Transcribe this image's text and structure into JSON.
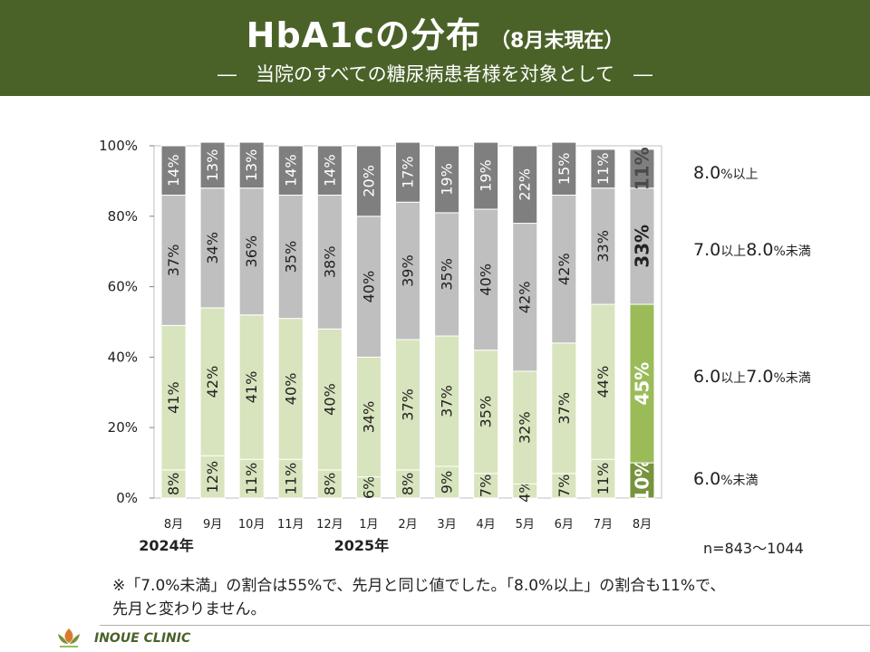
{
  "header": {
    "title": "HbA1cの分布",
    "title_suffix": "（8月末現在）",
    "subtitle": "―　当院のすべての糖尿病患者様を対象として　―"
  },
  "legend": [
    {
      "value": "8.0",
      "unit": "%以上"
    },
    {
      "value": "7.0",
      "unit_mid": "以上",
      "value2": "8.0",
      "unit": "%未満"
    },
    {
      "value": "6.0",
      "unit_mid": "以上",
      "value2": "7.0",
      "unit": "%未満"
    },
    {
      "value": "6.0",
      "unit": "%未満"
    }
  ],
  "n_label": "n=843～1044",
  "note": "※「7.0%未満」の割合は55%で、先月と同じ値でした。「8.0%以上」の割合も11%で、先月と変わりません。",
  "footer": {
    "clinic_name": "INOUE CLINIC"
  },
  "colors": {
    "header_bg": "#4a6228",
    "lt6": "#d7e4bd",
    "6to7": "#d7e4bd",
    "7to8": "#bfbfbf",
    "ge8": "#7f7f7f",
    "lt6_current": "#77933c",
    "6to7_current": "#9bbb59"
  },
  "chart_data": {
    "type": "bar",
    "stacked": true,
    "categories": [
      "8月",
      "9月",
      "10月",
      "11月",
      "12月",
      "1月",
      "2月",
      "3月",
      "4月",
      "5月",
      "6月",
      "7月",
      "8月"
    ],
    "year_labels": [
      {
        "label": "2024年",
        "at_category": 0
      },
      {
        "label": "2025年",
        "at_category": 5
      }
    ],
    "ylim": [
      0,
      100
    ],
    "yticks": [
      "0%",
      "20%",
      "40%",
      "60%",
      "80%",
      "100%"
    ],
    "series": [
      {
        "name": "6.0%未満",
        "values": [
          8,
          12,
          11,
          11,
          8,
          6,
          8,
          9,
          7,
          4,
          7,
          11,
          10
        ]
      },
      {
        "name": "6.0以上7.0%未満",
        "values": [
          41,
          42,
          41,
          40,
          40,
          34,
          37,
          37,
          35,
          32,
          37,
          44,
          45
        ]
      },
      {
        "name": "7.0以上8.0%未満",
        "values": [
          37,
          34,
          36,
          35,
          38,
          40,
          39,
          35,
          40,
          42,
          42,
          33,
          33
        ]
      },
      {
        "name": "8.0%以上",
        "values": [
          14,
          13,
          13,
          14,
          14,
          20,
          17,
          19,
          19,
          22,
          15,
          11,
          11
        ]
      }
    ],
    "highlight_category": 12,
    "grid": false
  }
}
